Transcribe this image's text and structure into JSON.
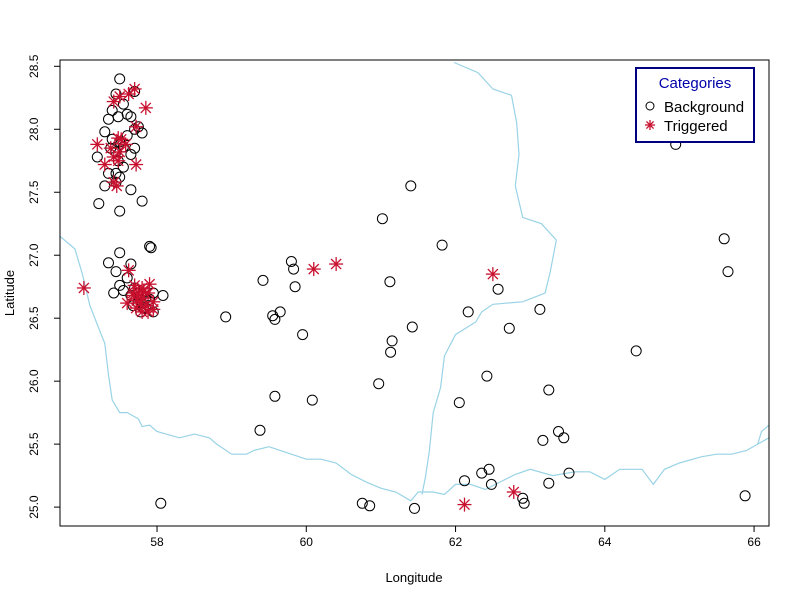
{
  "chart_data": {
    "type": "scatter",
    "title": "",
    "xlabel": "Longitude",
    "ylabel": "Latitude",
    "xlim": [
      56.7,
      66.2
    ],
    "ylim": [
      24.85,
      28.55
    ],
    "xticks": [
      58,
      60,
      62,
      64,
      66
    ],
    "yticks": [
      25.0,
      25.5,
      26.0,
      26.5,
      27.0,
      27.5,
      28.0,
      28.5
    ],
    "grid": false,
    "legend": {
      "title": "Categories",
      "placement": "top-right",
      "title_color": "#000099",
      "border_color": "#000080",
      "entries": [
        "Background",
        "Triggered"
      ]
    },
    "boundary_color": "#99d3e6",
    "boundaries": [
      [
        [
          56.7,
          27.15
        ],
        [
          56.9,
          27.05
        ],
        [
          57.0,
          26.85
        ],
        [
          57.1,
          26.6
        ],
        [
          57.2,
          26.45
        ],
        [
          57.3,
          26.3
        ],
        [
          57.35,
          26.05
        ],
        [
          57.4,
          25.85
        ],
        [
          57.5,
          25.75
        ],
        [
          57.6,
          25.75
        ],
        [
          57.75,
          25.7
        ],
        [
          57.8,
          25.64
        ],
        [
          57.9,
          25.65
        ],
        [
          58.0,
          25.6
        ],
        [
          58.3,
          25.55
        ],
        [
          58.5,
          25.58
        ],
        [
          58.7,
          25.55
        ],
        [
          58.8,
          25.5
        ],
        [
          59.0,
          25.42
        ],
        [
          59.2,
          25.42
        ],
        [
          59.3,
          25.45
        ],
        [
          59.5,
          25.48
        ],
        [
          59.7,
          25.44
        ],
        [
          60.0,
          25.38
        ],
        [
          60.2,
          25.38
        ],
        [
          60.4,
          25.35
        ],
        [
          60.6,
          25.26
        ],
        [
          60.8,
          25.2
        ],
        [
          61.0,
          25.15
        ],
        [
          61.2,
          25.12
        ],
        [
          61.4,
          25.05
        ],
        [
          61.5,
          25.12
        ],
        [
          61.7,
          25.12
        ],
        [
          61.85,
          25.1
        ],
        [
          62.0,
          25.18
        ],
        [
          62.2,
          25.18
        ],
        [
          62.4,
          25.14
        ],
        [
          62.6,
          25.2
        ],
        [
          62.8,
          25.26
        ],
        [
          63.0,
          25.3
        ],
        [
          63.3,
          25.25
        ],
        [
          63.6,
          25.28
        ],
        [
          63.8,
          25.28
        ],
        [
          64.0,
          25.22
        ],
        [
          64.2,
          25.3
        ],
        [
          64.5,
          25.3
        ],
        [
          64.65,
          25.18
        ],
        [
          64.8,
          25.3
        ],
        [
          65.0,
          25.35
        ],
        [
          65.3,
          25.4
        ],
        [
          65.5,
          25.42
        ],
        [
          65.7,
          25.42
        ],
        [
          65.9,
          25.45
        ],
        [
          66.05,
          25.5
        ],
        [
          66.2,
          25.55
        ]
      ],
      [
        [
          61.98,
          28.53
        ],
        [
          62.3,
          28.45
        ],
        [
          62.5,
          28.32
        ],
        [
          62.75,
          28.27
        ],
        [
          62.82,
          28.05
        ],
        [
          62.85,
          27.8
        ],
        [
          62.8,
          27.55
        ],
        [
          62.9,
          27.3
        ],
        [
          63.15,
          27.25
        ],
        [
          63.35,
          27.12
        ],
        [
          63.27,
          26.87
        ],
        [
          63.2,
          26.7
        ],
        [
          62.9,
          26.63
        ],
        [
          62.5,
          26.61
        ],
        [
          62.35,
          26.55
        ],
        [
          62.27,
          26.47
        ],
        [
          62.0,
          26.37
        ],
        [
          61.85,
          26.2
        ],
        [
          61.8,
          25.95
        ],
        [
          61.7,
          25.75
        ],
        [
          61.65,
          25.45
        ],
        [
          61.6,
          25.25
        ],
        [
          61.55,
          25.1
        ]
      ],
      [
        [
          66.05,
          25.5
        ],
        [
          66.1,
          25.6
        ],
        [
          66.2,
          25.65
        ]
      ]
    ],
    "series": [
      {
        "name": "Background",
        "marker": "open-circle",
        "color": "#000000",
        "points": [
          [
            57.5,
            28.4
          ],
          [
            57.45,
            28.28
          ],
          [
            57.7,
            28.3
          ],
          [
            57.55,
            28.2
          ],
          [
            57.4,
            28.15
          ],
          [
            57.65,
            28.1
          ],
          [
            57.6,
            28.12
          ],
          [
            57.48,
            28.1
          ],
          [
            57.35,
            28.08
          ],
          [
            57.7,
            28.0
          ],
          [
            57.8,
            27.97
          ],
          [
            57.75,
            28.02
          ],
          [
            57.6,
            27.95
          ],
          [
            57.4,
            27.92
          ],
          [
            57.3,
            27.98
          ],
          [
            57.5,
            27.9
          ],
          [
            57.55,
            27.86
          ],
          [
            57.7,
            27.85
          ],
          [
            57.38,
            27.85
          ],
          [
            57.45,
            27.82
          ],
          [
            57.2,
            27.78
          ],
          [
            57.65,
            27.8
          ],
          [
            57.48,
            27.75
          ],
          [
            57.55,
            27.7
          ],
          [
            57.35,
            27.65
          ],
          [
            57.45,
            27.65
          ],
          [
            57.5,
            27.62
          ],
          [
            57.3,
            27.55
          ],
          [
            57.45,
            27.58
          ],
          [
            57.65,
            27.52
          ],
          [
            57.8,
            27.43
          ],
          [
            57.22,
            27.41
          ],
          [
            57.5,
            27.35
          ],
          [
            57.9,
            27.07
          ],
          [
            57.92,
            27.06
          ],
          [
            57.5,
            27.02
          ],
          [
            57.35,
            26.94
          ],
          [
            57.65,
            26.93
          ],
          [
            57.45,
            26.87
          ],
          [
            57.6,
            26.82
          ],
          [
            57.5,
            26.76
          ],
          [
            57.7,
            26.74
          ],
          [
            57.55,
            26.72
          ],
          [
            57.42,
            26.7
          ],
          [
            57.75,
            26.7
          ],
          [
            57.65,
            26.68
          ],
          [
            57.8,
            26.68
          ],
          [
            57.85,
            26.66
          ],
          [
            57.9,
            26.65
          ],
          [
            57.75,
            26.62
          ],
          [
            57.68,
            26.6
          ],
          [
            57.82,
            26.58
          ],
          [
            57.88,
            26.6
          ],
          [
            57.95,
            26.7
          ],
          [
            58.08,
            26.68
          ],
          [
            57.78,
            26.55
          ],
          [
            57.95,
            26.55
          ],
          [
            58.05,
            25.03
          ],
          [
            58.92,
            26.51
          ],
          [
            59.42,
            26.8
          ],
          [
            59.55,
            26.52
          ],
          [
            59.58,
            26.49
          ],
          [
            59.65,
            26.55
          ],
          [
            59.8,
            26.95
          ],
          [
            59.83,
            26.89
          ],
          [
            59.85,
            26.75
          ],
          [
            59.95,
            26.37
          ],
          [
            59.58,
            25.88
          ],
          [
            60.08,
            25.85
          ],
          [
            59.38,
            25.61
          ],
          [
            61.02,
            27.29
          ],
          [
            61.12,
            26.79
          ],
          [
            61.15,
            26.32
          ],
          [
            61.13,
            26.23
          ],
          [
            60.97,
            25.98
          ],
          [
            61.42,
            26.43
          ],
          [
            61.82,
            27.08
          ],
          [
            62.17,
            26.55
          ],
          [
            61.4,
            27.55
          ],
          [
            60.75,
            25.03
          ],
          [
            60.85,
            25.01
          ],
          [
            61.45,
            24.99
          ],
          [
            62.05,
            25.83
          ],
          [
            62.42,
            26.04
          ],
          [
            62.57,
            26.73
          ],
          [
            62.72,
            26.42
          ],
          [
            63.13,
            26.57
          ],
          [
            63.25,
            25.93
          ],
          [
            63.17,
            25.53
          ],
          [
            63.38,
            25.6
          ],
          [
            63.45,
            25.55
          ],
          [
            63.52,
            25.27
          ],
          [
            63.25,
            25.19
          ],
          [
            62.12,
            25.21
          ],
          [
            62.35,
            25.27
          ],
          [
            62.45,
            25.3
          ],
          [
            62.48,
            25.18
          ],
          [
            62.9,
            25.07
          ],
          [
            62.92,
            25.03
          ],
          [
            64.42,
            26.24
          ],
          [
            65.6,
            27.13
          ],
          [
            65.65,
            26.87
          ],
          [
            64.95,
            27.88
          ],
          [
            65.88,
            25.09
          ]
        ]
      },
      {
        "name": "Triggered",
        "marker": "asterisk",
        "color": "#c8102e",
        "points": [
          [
            57.7,
            28.32
          ],
          [
            57.62,
            28.28
          ],
          [
            57.5,
            28.26
          ],
          [
            57.42,
            28.22
          ],
          [
            57.85,
            28.17
          ],
          [
            57.72,
            28.02
          ],
          [
            57.48,
            27.93
          ],
          [
            57.52,
            27.92
          ],
          [
            57.58,
            27.88
          ],
          [
            57.2,
            27.88
          ],
          [
            57.38,
            27.85
          ],
          [
            57.5,
            27.82
          ],
          [
            57.42,
            27.78
          ],
          [
            57.48,
            27.75
          ],
          [
            57.3,
            27.72
          ],
          [
            57.72,
            27.72
          ],
          [
            57.42,
            27.58
          ],
          [
            57.46,
            27.55
          ],
          [
            57.62,
            26.88
          ],
          [
            57.7,
            26.76
          ],
          [
            57.8,
            26.74
          ],
          [
            57.9,
            26.77
          ],
          [
            57.75,
            26.7
          ],
          [
            57.82,
            26.71
          ],
          [
            57.88,
            26.7
          ],
          [
            57.68,
            26.68
          ],
          [
            57.8,
            26.66
          ],
          [
            57.73,
            26.64
          ],
          [
            57.78,
            26.62
          ],
          [
            57.95,
            26.63
          ],
          [
            57.6,
            26.62
          ],
          [
            57.85,
            26.6
          ],
          [
            57.95,
            26.57
          ],
          [
            57.72,
            26.58
          ],
          [
            57.8,
            26.55
          ],
          [
            57.88,
            26.55
          ],
          [
            57.68,
            26.7
          ],
          [
            57.02,
            26.74
          ],
          [
            60.1,
            26.89
          ],
          [
            60.4,
            26.93
          ],
          [
            62.5,
            26.85
          ],
          [
            62.12,
            25.02
          ],
          [
            62.78,
            25.12
          ]
        ]
      }
    ]
  }
}
